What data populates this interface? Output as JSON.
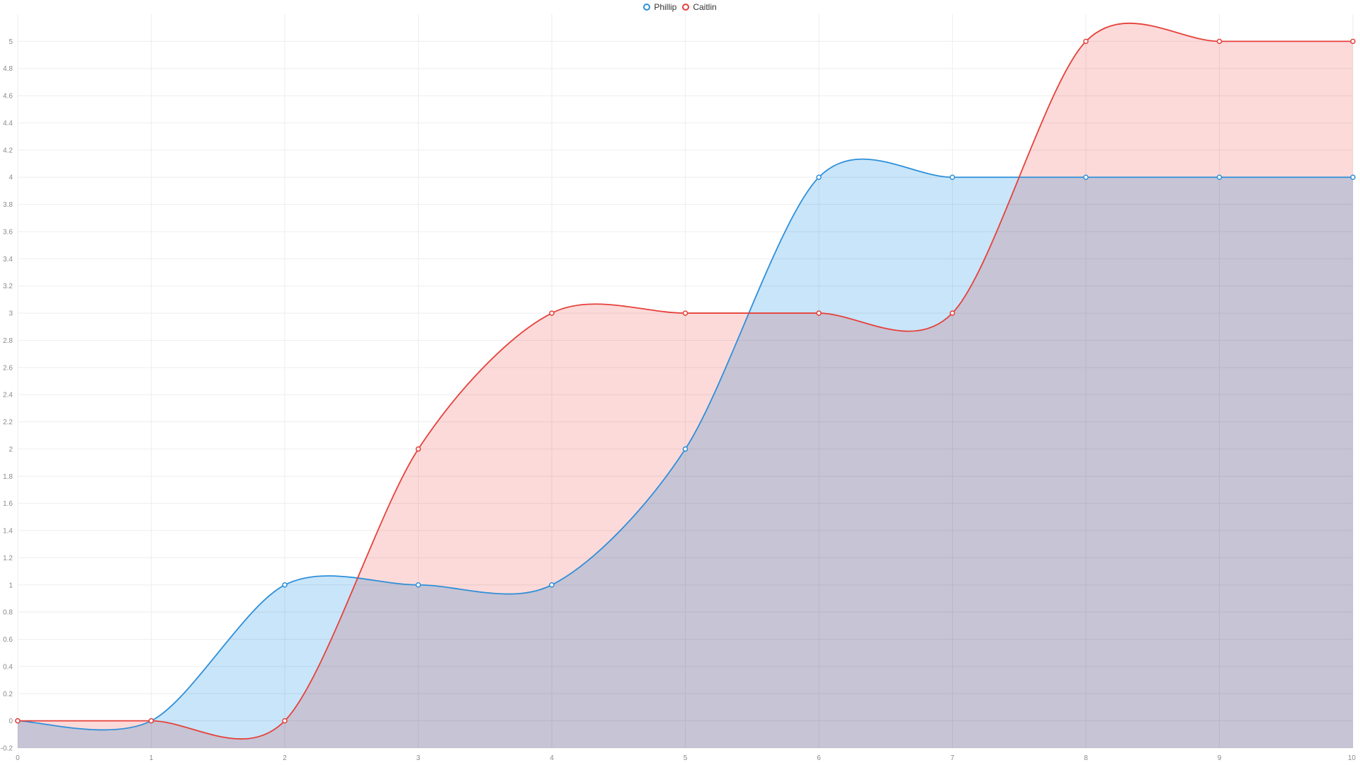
{
  "chart_data": {
    "type": "area",
    "x": [
      0,
      1,
      2,
      3,
      4,
      5,
      6,
      7,
      8,
      9,
      10
    ],
    "series": [
      {
        "name": "Phillip",
        "color": "#2e8fd9",
        "fill": "#bfe0f8",
        "values": [
          0,
          0,
          1,
          1,
          1,
          2,
          4,
          4,
          4,
          4,
          4
        ]
      },
      {
        "name": "Caitlin",
        "color": "#e5413a",
        "fill": "#fcd3d3",
        "values": [
          0,
          0,
          0,
          2,
          3,
          3,
          3,
          3,
          5,
          5,
          5
        ]
      }
    ],
    "xlim": [
      0,
      10
    ],
    "ylim": [
      -0.2,
      5.2
    ],
    "x_ticks": [
      "0",
      "1",
      "2",
      "3",
      "4",
      "5",
      "6",
      "7",
      "8",
      "9",
      "10"
    ],
    "y_ticks": [
      "-0.2",
      "0",
      "0.2",
      "0.4",
      "0.6",
      "0.8",
      "1",
      "1.2",
      "1.4",
      "1.6",
      "1.8",
      "2",
      "2.2",
      "2.4",
      "2.6",
      "2.8",
      "3",
      "3.2",
      "3.4",
      "3.6",
      "3.8",
      "4",
      "4.2",
      "4.4",
      "4.6",
      "4.8",
      "5"
    ],
    "grid": true,
    "legend_position": "top-center",
    "curve": "smooth",
    "title": "",
    "xlabel": "",
    "ylabel": ""
  }
}
